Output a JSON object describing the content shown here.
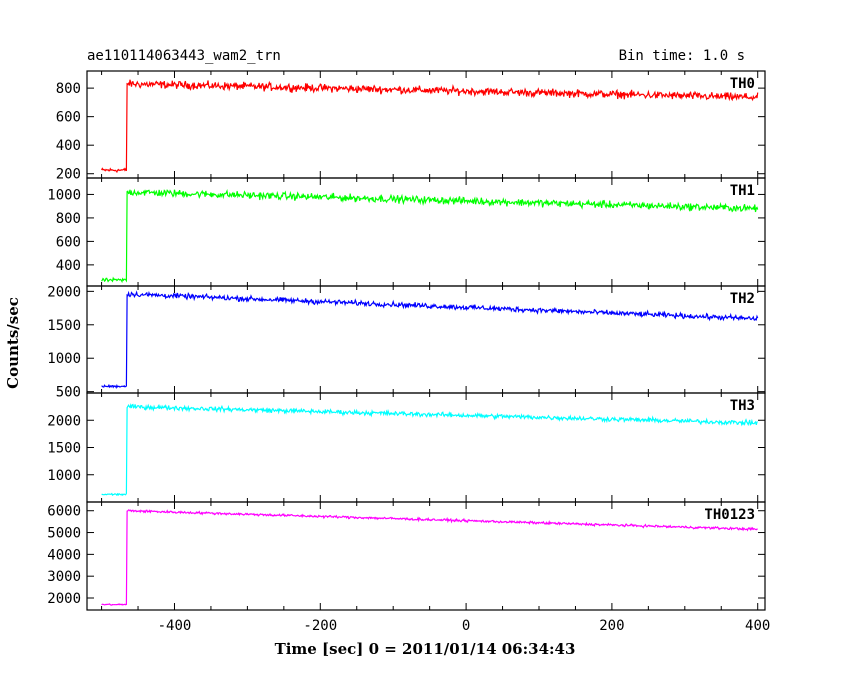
{
  "header": {
    "object_id": "ae110114063443_wam2_trn",
    "bin_time": "Bin time: 1.0 s"
  },
  "chart_data": {
    "type": "line",
    "title": "ae110114063443_wam2_trn",
    "xlabel": "Time [sec] 0 = 2011/01/14 06:34:43",
    "ylabel": "Counts/sec",
    "xlim": [
      -520,
      410
    ],
    "x_ticks": [
      -400,
      -200,
      0,
      200,
      400
    ],
    "panels": [
      {
        "name": "TH0",
        "color": "#ff0000",
        "ylim": [
          170,
          920
        ],
        "y_ticks": [
          200,
          400,
          600,
          800
        ],
        "pre_level": 225,
        "pre_noise": 20,
        "trigger_x": -465,
        "post_start": 830,
        "post_end": 735,
        "post_noise": 40
      },
      {
        "name": "TH1",
        "color": "#00ff00",
        "ylim": [
          220,
          1140
        ],
        "y_ticks": [
          400,
          600,
          800,
          1000
        ],
        "pre_level": 270,
        "pre_noise": 22,
        "trigger_x": -465,
        "post_start": 1020,
        "post_end": 880,
        "post_noise": 45
      },
      {
        "name": "TH2",
        "color": "#0000ff",
        "ylim": [
          480,
          2080
        ],
        "y_ticks": [
          500,
          1000,
          1500,
          2000
        ],
        "pre_level": 580,
        "pre_noise": 25,
        "trigger_x": -465,
        "post_start": 1960,
        "post_end": 1590,
        "post_noise": 55
      },
      {
        "name": "TH3",
        "color": "#00ffff",
        "ylim": [
          500,
          2500
        ],
        "y_ticks": [
          1000,
          1500,
          2000
        ],
        "pre_level": 640,
        "pre_noise": 25,
        "trigger_x": -465,
        "post_start": 2250,
        "post_end": 1950,
        "post_noise": 60
      },
      {
        "name": "TH0123",
        "color": "#ff00ff",
        "ylim": [
          1450,
          6400
        ],
        "y_ticks": [
          2000,
          3000,
          4000,
          5000,
          6000
        ],
        "pre_level": 1700,
        "pre_noise": 45,
        "trigger_x": -465,
        "post_start": 6000,
        "post_end": 5150,
        "post_noise": 80
      }
    ]
  }
}
